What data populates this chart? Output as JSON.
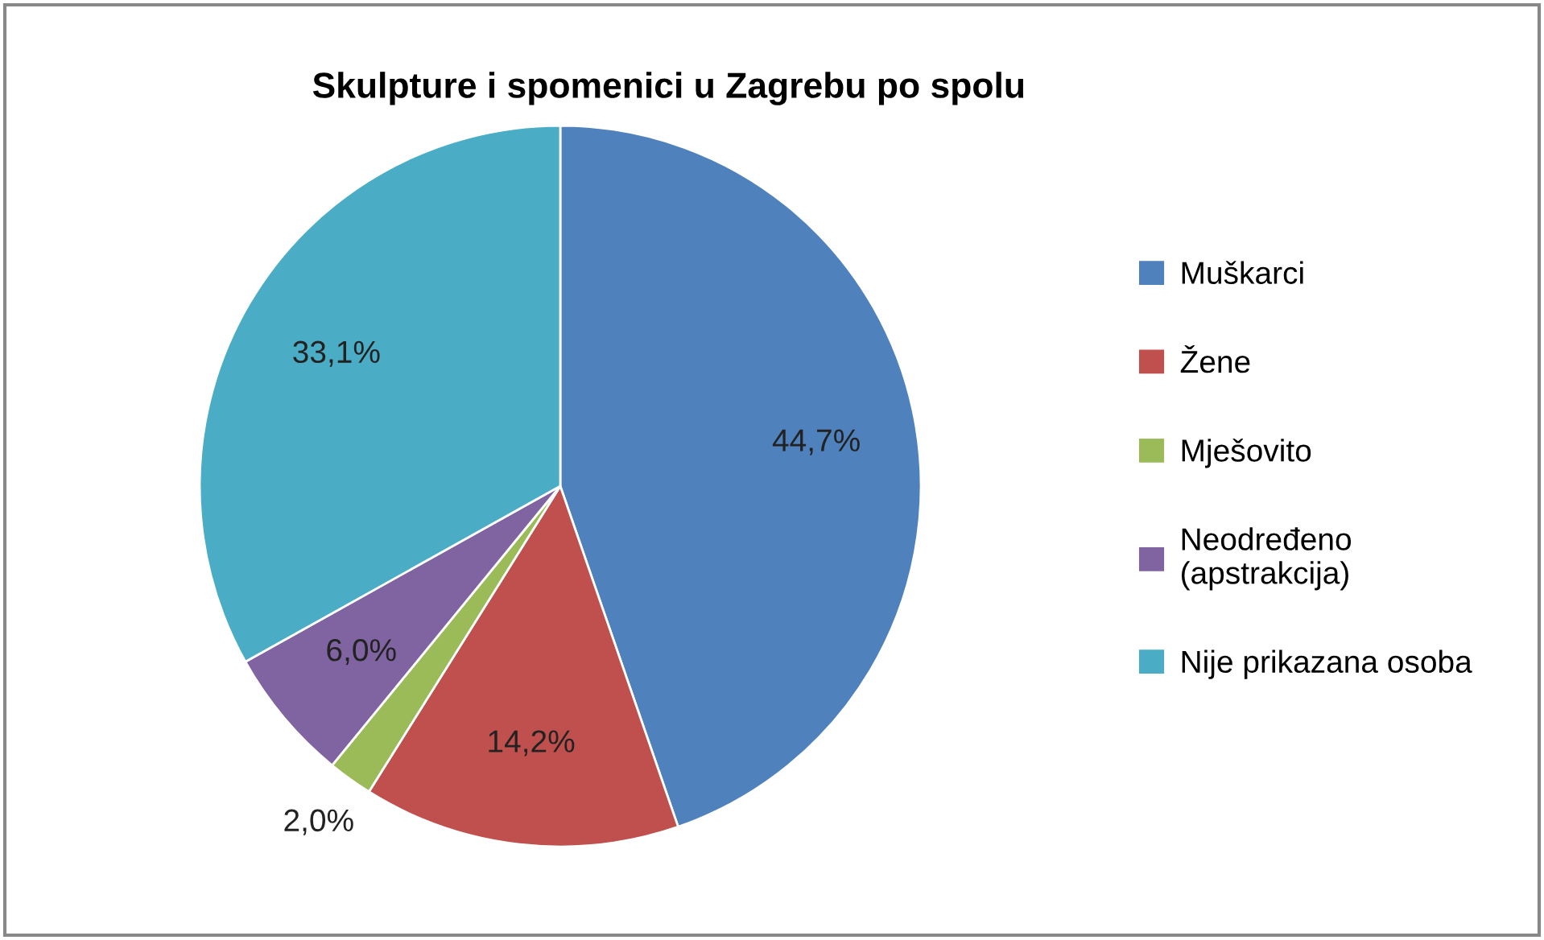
{
  "chart_data": {
    "type": "pie",
    "title": "Skulpture i spomenici u Zagrebu po spolu",
    "categories": [
      "Muškarci",
      "Žene",
      "Mješovito",
      "Neodređeno\n(apstrakcija)",
      "Nije prikazana osoba"
    ],
    "values": [
      44.7,
      14.2,
      2.0,
      6.0,
      33.1
    ],
    "colors": [
      "#4f81bd",
      "#c0504d",
      "#9bbb59",
      "#8064a2",
      "#4bacc6"
    ],
    "value_labels": [
      "44,7%",
      "14,2%",
      "2,0%",
      "6,0%",
      "33,1%"
    ],
    "legend": "right"
  }
}
